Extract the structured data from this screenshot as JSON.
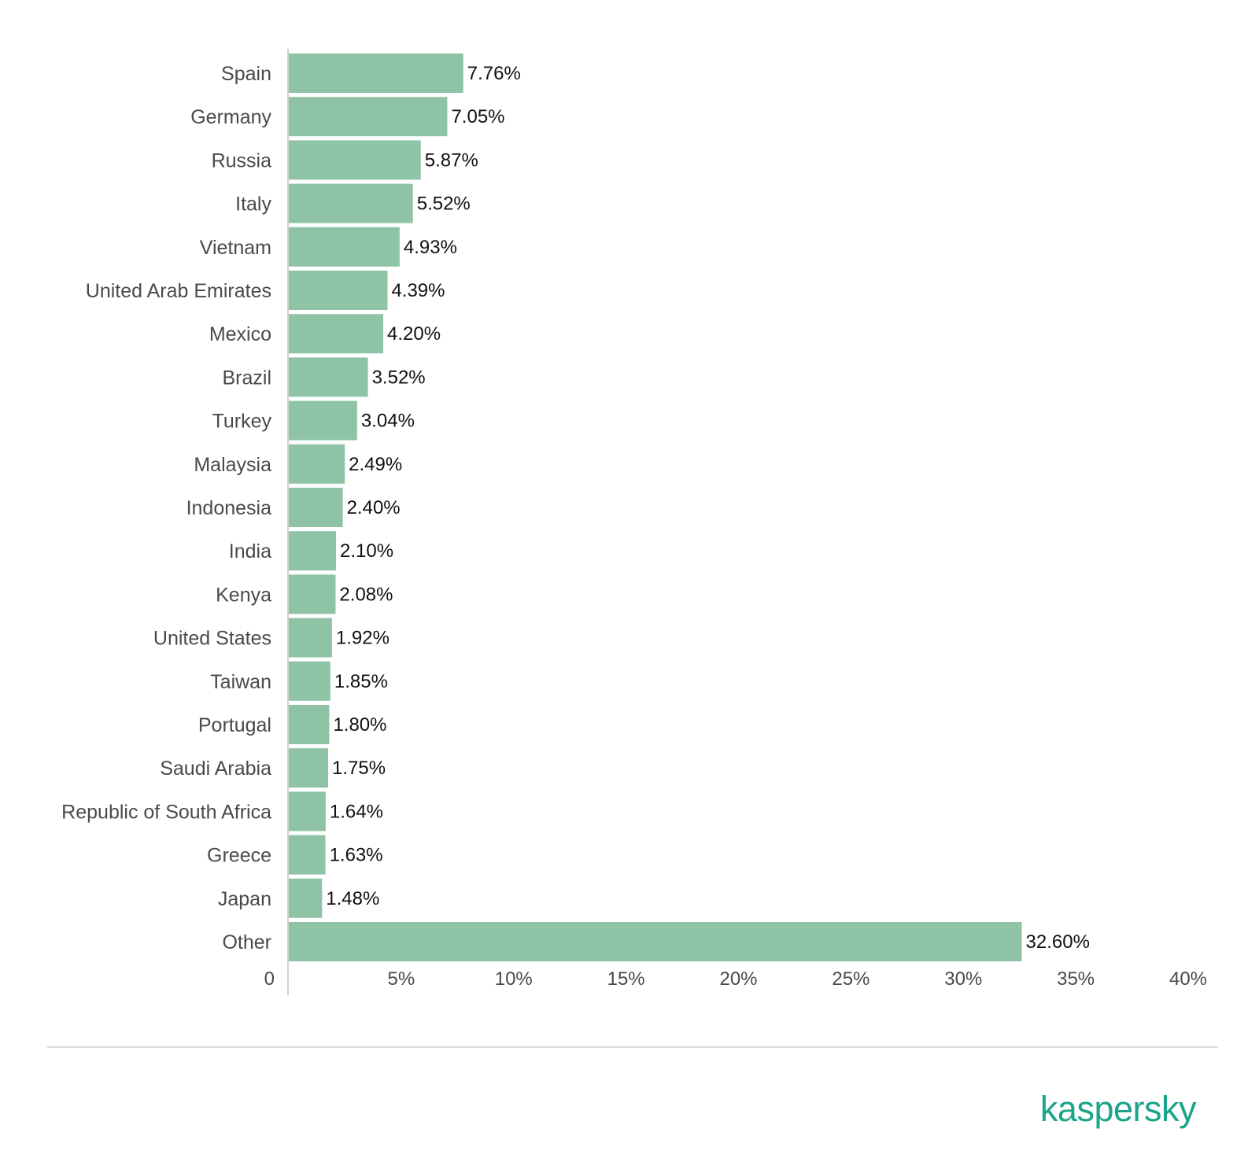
{
  "colors": {
    "bar": "#8fc3a6",
    "axis": "#d0d0d0",
    "brand": "#1aa58a"
  },
  "brand": {
    "name": "kaspersky"
  },
  "chart_data": {
    "type": "bar",
    "orientation": "horizontal",
    "categories": [
      "Spain",
      "Germany",
      "Russia",
      "Italy",
      "Vietnam",
      "United Arab Emirates",
      "Mexico",
      "Brazil",
      "Turkey",
      "Malaysia",
      "Indonesia",
      "India",
      "Kenya",
      "United States",
      "Taiwan",
      "Portugal",
      "Saudi Arabia",
      "Republic of South Africa",
      "Greece",
      "Japan",
      "Other"
    ],
    "values": [
      7.76,
      7.05,
      5.87,
      5.52,
      4.93,
      4.39,
      4.2,
      3.52,
      3.04,
      2.49,
      2.4,
      2.1,
      2.08,
      1.92,
      1.85,
      1.8,
      1.75,
      1.64,
      1.63,
      1.48,
      32.6
    ],
    "value_labels": [
      "7.76%",
      "7.05%",
      "5.87%",
      "5.52%",
      "4.93%",
      "4.39%",
      "4.20%",
      "3.52%",
      "3.04%",
      "2.49%",
      "2.40%",
      "2.10%",
      "2.08%",
      "1.92%",
      "1.85%",
      "1.80%",
      "1.75%",
      "1.64%",
      "1.63%",
      "1.48%",
      "32.60%"
    ],
    "xlim": [
      0,
      40
    ],
    "x_ticks": [
      0,
      5,
      10,
      15,
      20,
      25,
      30,
      35,
      40
    ],
    "x_tick_labels": [
      "0",
      "5%",
      "10%",
      "15%",
      "20%",
      "25%",
      "30%",
      "35%",
      "40%"
    ],
    "grid": false,
    "legend": "none",
    "title": "",
    "xlabel": "",
    "ylabel": ""
  }
}
